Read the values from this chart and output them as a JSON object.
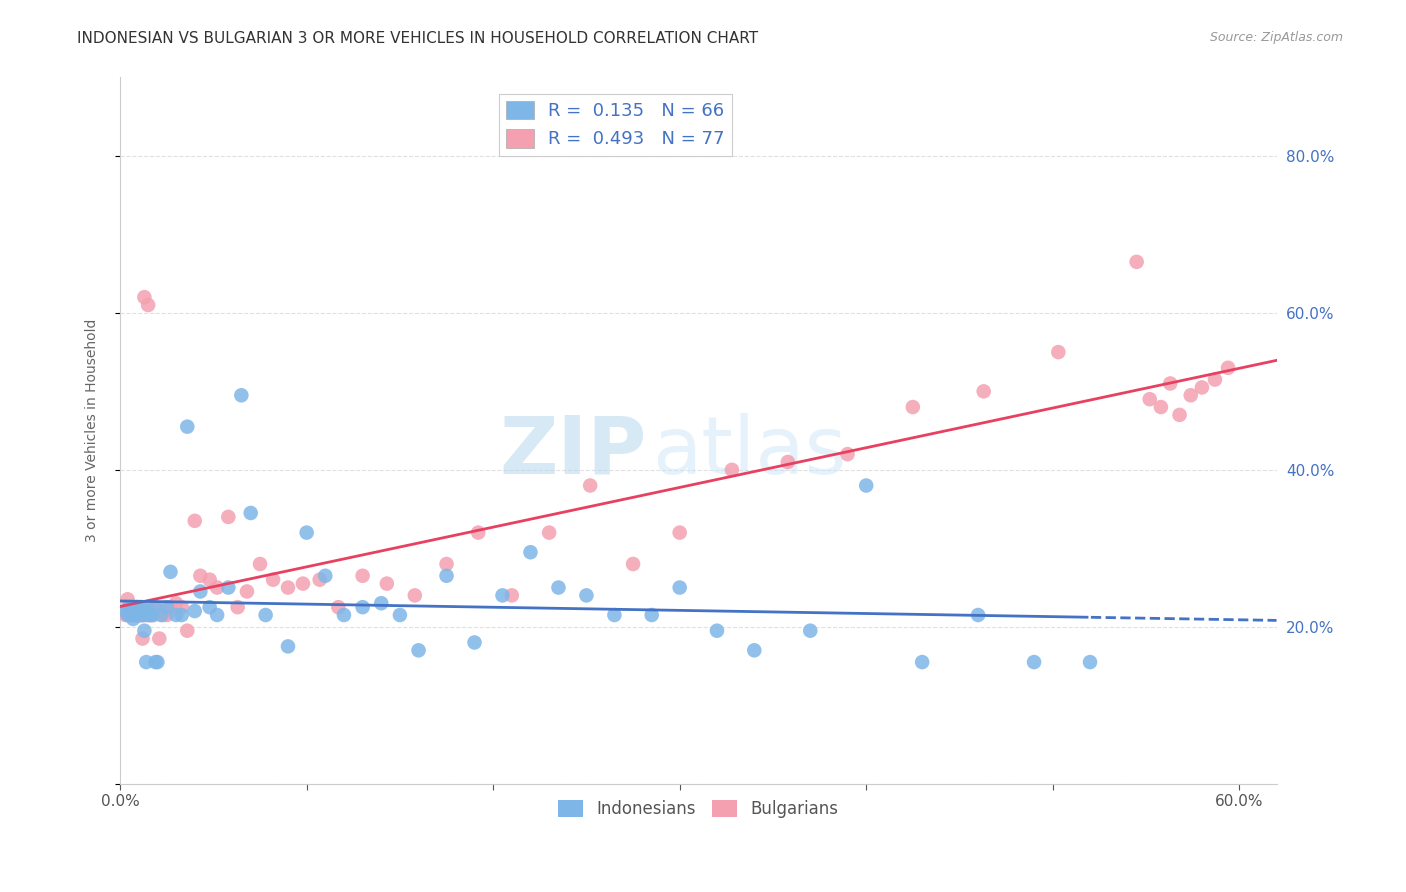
{
  "title": "INDONESIAN VS BULGARIAN 3 OR MORE VEHICLES IN HOUSEHOLD CORRELATION CHART",
  "source": "Source: ZipAtlas.com",
  "ylabel": "3 or more Vehicles in Household",
  "xlim": [
    0.0,
    0.62
  ],
  "ylim": [
    0.0,
    0.9
  ],
  "ytick_positions": [
    0.0,
    0.2,
    0.4,
    0.6,
    0.8
  ],
  "ytick_labels": [
    "",
    "20.0%",
    "40.0%",
    "60.0%",
    "80.0%"
  ],
  "xtick_positions": [
    0.0,
    0.1,
    0.2,
    0.3,
    0.4,
    0.5,
    0.6
  ],
  "xtick_labels": [
    "0.0%",
    "",
    "",
    "",
    "",
    "",
    "60.0%"
  ],
  "indonesian_R": 0.135,
  "indonesian_N": 66,
  "bulgarian_R": 0.493,
  "bulgarian_N": 77,
  "indonesian_color": "#7EB6E8",
  "bulgarian_color": "#F4A0B0",
  "indonesian_line_color": "#4472C4",
  "bulgarian_line_color": "#E84060",
  "watermark_zip": "ZIP",
  "watermark_atlas": "atlas",
  "indonesian_x": [
    0.003,
    0.004,
    0.005,
    0.006,
    0.006,
    0.007,
    0.007,
    0.008,
    0.008,
    0.009,
    0.009,
    0.01,
    0.01,
    0.011,
    0.011,
    0.012,
    0.012,
    0.013,
    0.013,
    0.014,
    0.015,
    0.015,
    0.016,
    0.017,
    0.018,
    0.019,
    0.02,
    0.022,
    0.025,
    0.027,
    0.03,
    0.033,
    0.036,
    0.04,
    0.043,
    0.048,
    0.052,
    0.058,
    0.065,
    0.07,
    0.078,
    0.09,
    0.1,
    0.11,
    0.12,
    0.13,
    0.14,
    0.15,
    0.16,
    0.175,
    0.19,
    0.205,
    0.22,
    0.235,
    0.25,
    0.265,
    0.285,
    0.3,
    0.32,
    0.34,
    0.37,
    0.4,
    0.43,
    0.46,
    0.49,
    0.52
  ],
  "indonesian_y": [
    0.22,
    0.215,
    0.225,
    0.215,
    0.22,
    0.21,
    0.225,
    0.215,
    0.22,
    0.215,
    0.225,
    0.215,
    0.22,
    0.215,
    0.225,
    0.22,
    0.215,
    0.22,
    0.195,
    0.155,
    0.215,
    0.22,
    0.215,
    0.215,
    0.225,
    0.155,
    0.155,
    0.215,
    0.225,
    0.27,
    0.215,
    0.215,
    0.455,
    0.22,
    0.245,
    0.225,
    0.215,
    0.25,
    0.495,
    0.345,
    0.215,
    0.175,
    0.32,
    0.265,
    0.215,
    0.225,
    0.23,
    0.215,
    0.17,
    0.265,
    0.18,
    0.24,
    0.295,
    0.25,
    0.24,
    0.215,
    0.215,
    0.25,
    0.195,
    0.17,
    0.195,
    0.38,
    0.155,
    0.215,
    0.155,
    0.155
  ],
  "bulgarian_x": [
    0.002,
    0.003,
    0.004,
    0.005,
    0.005,
    0.006,
    0.006,
    0.007,
    0.007,
    0.008,
    0.008,
    0.009,
    0.009,
    0.01,
    0.01,
    0.011,
    0.011,
    0.012,
    0.012,
    0.013,
    0.013,
    0.014,
    0.014,
    0.015,
    0.015,
    0.016,
    0.016,
    0.017,
    0.018,
    0.019,
    0.02,
    0.021,
    0.022,
    0.023,
    0.025,
    0.027,
    0.03,
    0.033,
    0.036,
    0.04,
    0.043,
    0.048,
    0.052,
    0.058,
    0.063,
    0.068,
    0.075,
    0.082,
    0.09,
    0.098,
    0.107,
    0.117,
    0.13,
    0.143,
    0.158,
    0.175,
    0.192,
    0.21,
    0.23,
    0.252,
    0.275,
    0.3,
    0.328,
    0.358,
    0.39,
    0.425,
    0.463,
    0.503,
    0.545,
    0.552,
    0.558,
    0.563,
    0.568,
    0.574,
    0.58,
    0.587,
    0.594
  ],
  "bulgarian_y": [
    0.22,
    0.215,
    0.235,
    0.22,
    0.215,
    0.225,
    0.215,
    0.215,
    0.22,
    0.22,
    0.215,
    0.215,
    0.225,
    0.22,
    0.215,
    0.215,
    0.225,
    0.215,
    0.185,
    0.215,
    0.62,
    0.215,
    0.22,
    0.225,
    0.61,
    0.215,
    0.22,
    0.215,
    0.215,
    0.225,
    0.22,
    0.185,
    0.22,
    0.215,
    0.215,
    0.225,
    0.23,
    0.225,
    0.195,
    0.335,
    0.265,
    0.26,
    0.25,
    0.34,
    0.225,
    0.245,
    0.28,
    0.26,
    0.25,
    0.255,
    0.26,
    0.225,
    0.265,
    0.255,
    0.24,
    0.28,
    0.32,
    0.24,
    0.32,
    0.38,
    0.28,
    0.32,
    0.4,
    0.41,
    0.42,
    0.48,
    0.5,
    0.55,
    0.665,
    0.49,
    0.48,
    0.51,
    0.47,
    0.495,
    0.505,
    0.515,
    0.53
  ],
  "background_color": "#FFFFFF",
  "grid_color": "#DDDDDD"
}
